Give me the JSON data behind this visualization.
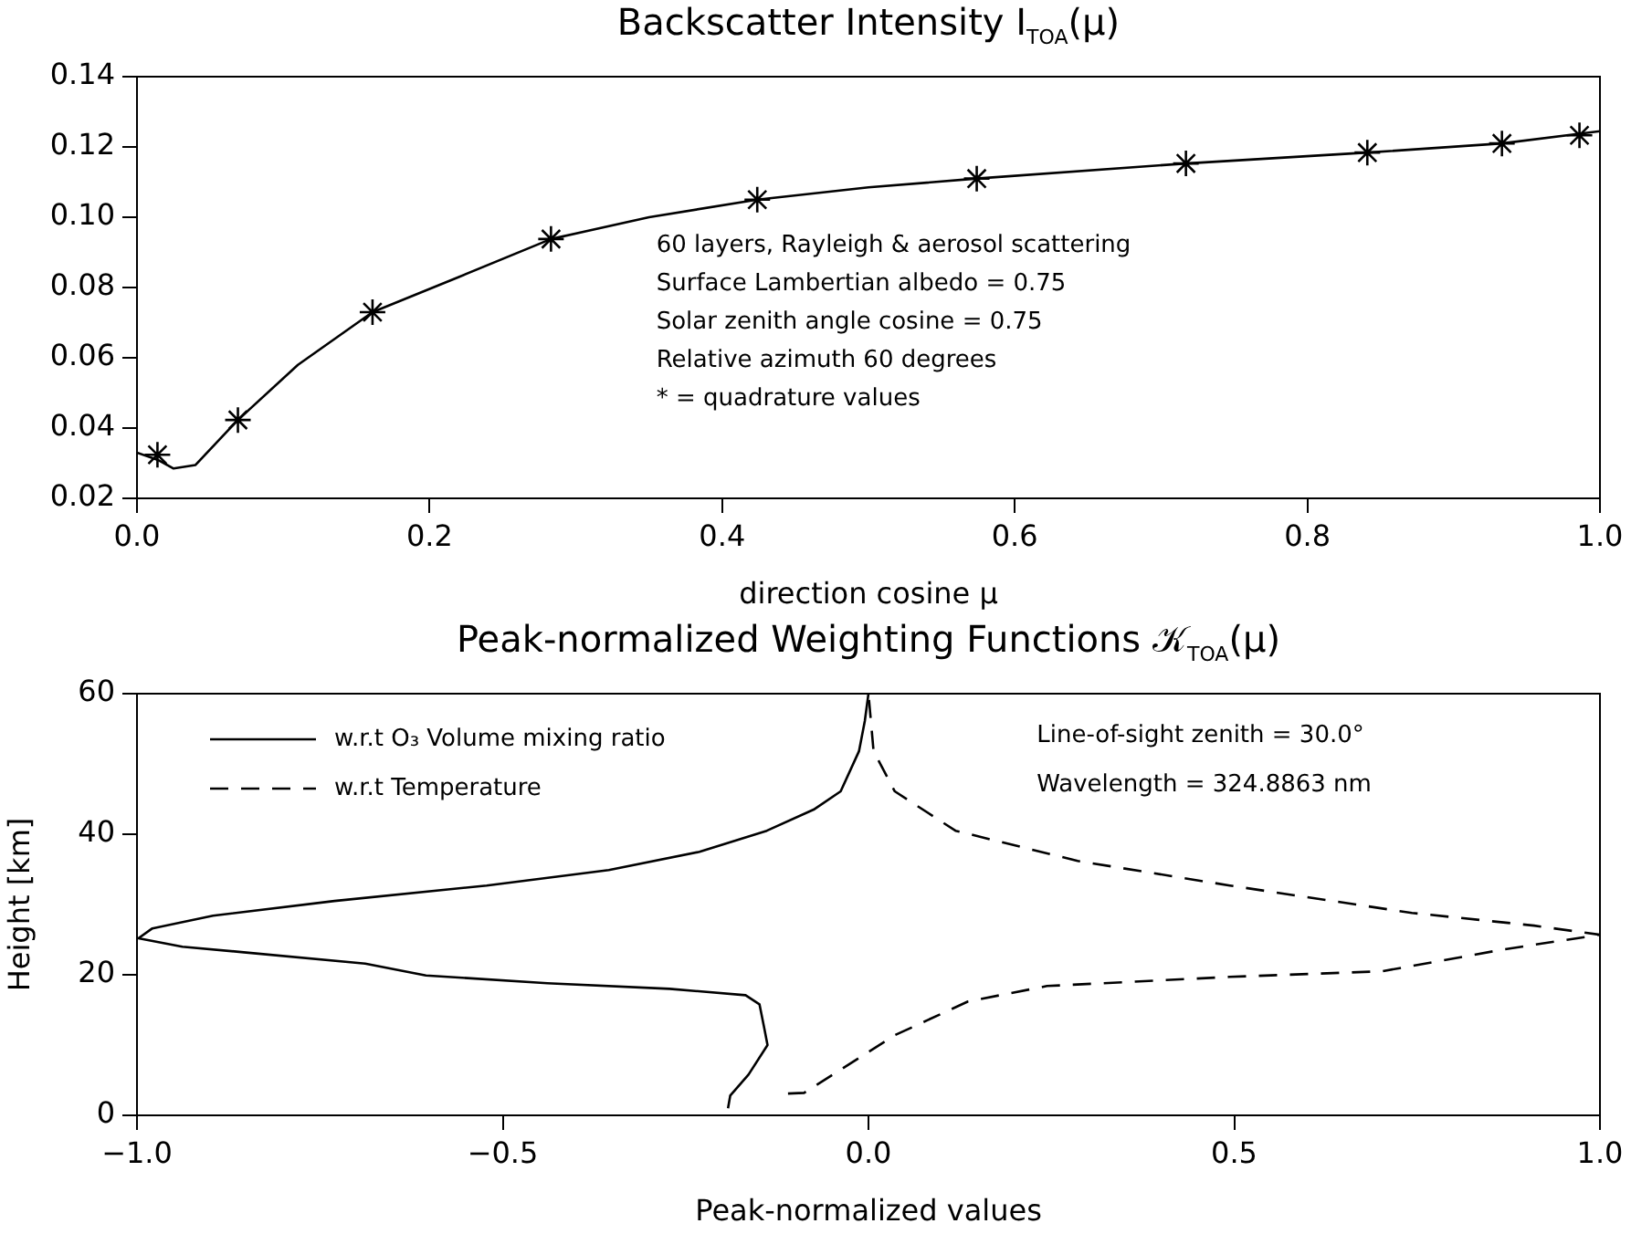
{
  "chart_data": [
    {
      "type": "line",
      "title": "Backscatter Intensity I$_{TOA}$(μ)",
      "xlabel": "direction cosine μ",
      "grid": false,
      "legend": false,
      "xlim": [
        0,
        1
      ],
      "xticks": [
        {
          "value": 0,
          "label": "0.0"
        },
        {
          "value": 0.2,
          "label": "0.2"
        },
        {
          "value": 0.4,
          "label": "0.4"
        },
        {
          "value": 0.6,
          "label": "0.6"
        },
        {
          "value": 0.8,
          "label": "0.8"
        },
        {
          "value": 1,
          "label": "1.0"
        }
      ],
      "ylim": [
        0.02,
        0.14
      ],
      "yticks": [
        0.02,
        0.04,
        0.06,
        0.08,
        {
          "value": 0.1,
          "label": "0.10"
        },
        0.12,
        0.14
      ],
      "annotations": [
        "60 layers, Rayleigh & aerosol scattering",
        "Surface Lambertian albedo = 0.75",
        "Solar zenith angle cosine = 0.75",
        "Relative azimuth 60 degrees",
        "* = quadrature values"
      ],
      "series": [
        {
          "type": "line",
          "color": "#000000",
          "marker": "none",
          "line_style": "solid",
          "x": [
            0,
            0.014,
            0.025,
            0.04,
            0.069,
            0.11,
            0.161,
            0.22,
            0.283,
            0.35,
            0.424,
            0.5,
            0.574,
            0.717,
            0.841,
            0.933,
            1.0
          ],
          "values": [
            0.033,
            0.031,
            0.0285,
            0.0295,
            0.0423,
            0.058,
            0.073,
            0.083,
            0.0938,
            0.1,
            0.105,
            0.1085,
            0.111,
            0.1153,
            0.1184,
            0.121,
            0.1245
          ]
        },
        {
          "type": "scatter",
          "color": "#000000",
          "marker": "cross",
          "x": [
            0.014,
            0.069,
            0.161,
            0.283,
            0.424,
            0.574,
            0.717,
            0.841,
            0.933,
            0.986
          ],
          "values": [
            0.0324,
            0.0423,
            0.073,
            0.0938,
            0.105,
            0.111,
            0.1153,
            0.1184,
            0.121,
            0.1233
          ]
        }
      ]
    },
    {
      "type": "line",
      "title": "Peak-normalized Weighting Functions 𝒦$_{TOA}$(μ)",
      "xlabel": "Peak-normalized values",
      "ylabel": "Height [km]",
      "grid": false,
      "legend": "top left",
      "xlim": [
        -1,
        1
      ],
      "xticks": [
        {
          "value": -1,
          "label": "−1.0"
        },
        {
          "value": -0.5,
          "label": "−0.5"
        },
        {
          "value": 0,
          "label": "0.0"
        },
        {
          "value": 0.5,
          "label": "0.5"
        },
        {
          "value": 1,
          "label": "1.0"
        }
      ],
      "ylim": [
        0,
        60
      ],
      "yticks": [
        0,
        20,
        40,
        60
      ],
      "annotations": [
        "Line-of-sight zenith = 30.0°",
        "Wavelength = 324.8863 nm"
      ],
      "series": [
        {
          "type": "line",
          "name": "w.r.t O₃ Volume mixing ratio",
          "color": "#000000",
          "line_style": "solid",
          "marker": "none",
          "x": [
            -0.192,
            -0.189,
            -0.164,
            -0.138,
            -0.143,
            -0.149,
            -0.168,
            -0.272,
            -0.439,
            -0.605,
            -0.688,
            -0.854,
            -0.938,
            -0.998,
            -0.979,
            -0.896,
            -0.73,
            -0.522,
            -0.355,
            -0.231,
            -0.139,
            -0.075,
            -0.038,
            -0.013,
            -0.005,
            0
          ],
          "values": [
            1,
            2.8,
            5.8,
            10,
            12.7,
            15.8,
            17.1,
            18,
            18.8,
            19.9,
            21.6,
            23.2,
            24,
            25.2,
            26.6,
            28.4,
            30.5,
            32.7,
            34.9,
            37.5,
            40.5,
            43.5,
            46.1,
            51.8,
            56.1,
            60
          ]
        },
        {
          "type": "line",
          "name": "w.r.t Temperature",
          "color": "#000000",
          "line_style": "dashed",
          "marker": "none",
          "x": [
            -0.11,
            -0.088,
            0.036,
            0.136,
            0.244,
            0.494,
            0.702,
            0.868,
            1,
            0.91,
            0.743,
            0.494,
            0.286,
            0.119,
            0.036,
            0.007,
            0
          ],
          "values": [
            3.1,
            3.2,
            11.4,
            16.2,
            18.4,
            19.7,
            20.5,
            23.6,
            25.7,
            27,
            28.8,
            32.7,
            36.2,
            40.5,
            46.1,
            51.8,
            60
          ]
        }
      ]
    }
  ]
}
